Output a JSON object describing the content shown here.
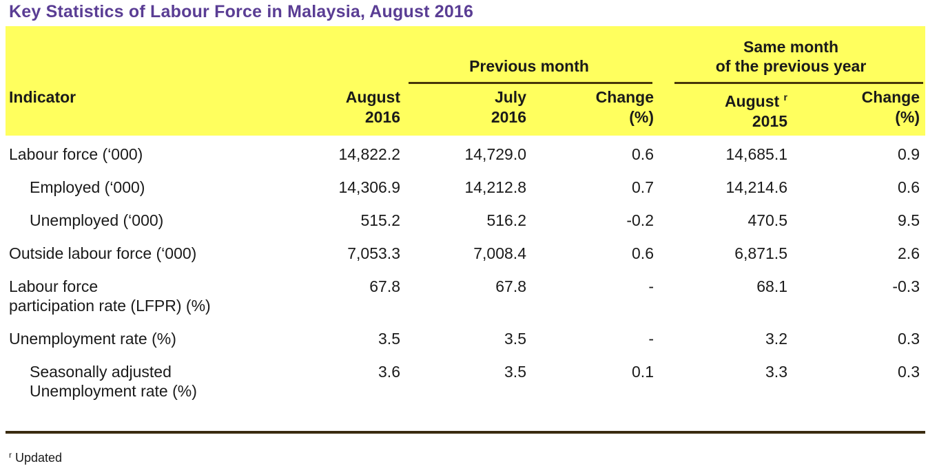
{
  "title": "Key Statistics of Labour Force in Malaysia, August 2016",
  "header": {
    "indicator": "Indicator",
    "groups": {
      "previous_month": {
        "line1": "Previous month"
      },
      "same_month": {
        "line1": "Same month",
        "line2": "of the previous year"
      }
    },
    "columns": {
      "current_month": {
        "line1": "August",
        "line2": "2016"
      },
      "prev_month": {
        "line1": "July",
        "line2": "2016"
      },
      "prev_change": {
        "line1": "Change",
        "line2": "(%)"
      },
      "prev_year": {
        "line1": "August",
        "sup": "r",
        "line2": "2015"
      },
      "year_change": {
        "line1": "Change",
        "line2": "(%)"
      }
    }
  },
  "rows": [
    {
      "label1": "Labour force (‘000)",
      "aug2016": "14,822.2",
      "jul2016": "14,729.0",
      "chg_mom": "0.6",
      "aug2015": "14,685.1",
      "chg_yoy": "0.9"
    },
    {
      "label1": "Employed (‘000)",
      "aug2016": "14,306.9",
      "jul2016": "14,212.8",
      "chg_mom": "0.7",
      "aug2015": "14,214.6",
      "chg_yoy": "0.6"
    },
    {
      "label1": "Unemployed (‘000)",
      "aug2016": "515.2",
      "jul2016": "516.2",
      "chg_mom": "-0.2",
      "aug2015": "470.5",
      "chg_yoy": "9.5"
    },
    {
      "label1": "Outside labour force (‘000)",
      "aug2016": "7,053.3",
      "jul2016": "7,008.4",
      "chg_mom": "0.6",
      "aug2015": "6,871.5",
      "chg_yoy": "2.6"
    },
    {
      "label1": "Labour force",
      "label2": "participation rate (LFPR) (%)",
      "aug2016": "67.8",
      "jul2016": "67.8",
      "chg_mom": "-",
      "aug2015": "68.1",
      "chg_yoy": "-0.3"
    },
    {
      "label1": "Unemployment rate (%)",
      "aug2016": "3.5",
      "jul2016": "3.5",
      "chg_mom": "-",
      "aug2015": "3.2",
      "chg_yoy": "0.3"
    },
    {
      "label1": "Seasonally adjusted",
      "label2": "Unemployment rate (%)",
      "aug2016": "3.6",
      "jul2016": "3.5",
      "chg_mom": "0.1",
      "aug2015": "3.3",
      "chg_yoy": "0.3"
    }
  ],
  "footnote": {
    "sup": "r",
    "text": "Updated"
  },
  "colors": {
    "band_yellow": "#ffff5e",
    "title_purple": "#5a3d94",
    "header_rule_brown": "#473608",
    "bottom_rule_brown": "#3a2b10",
    "text": "#1a1a1a"
  }
}
